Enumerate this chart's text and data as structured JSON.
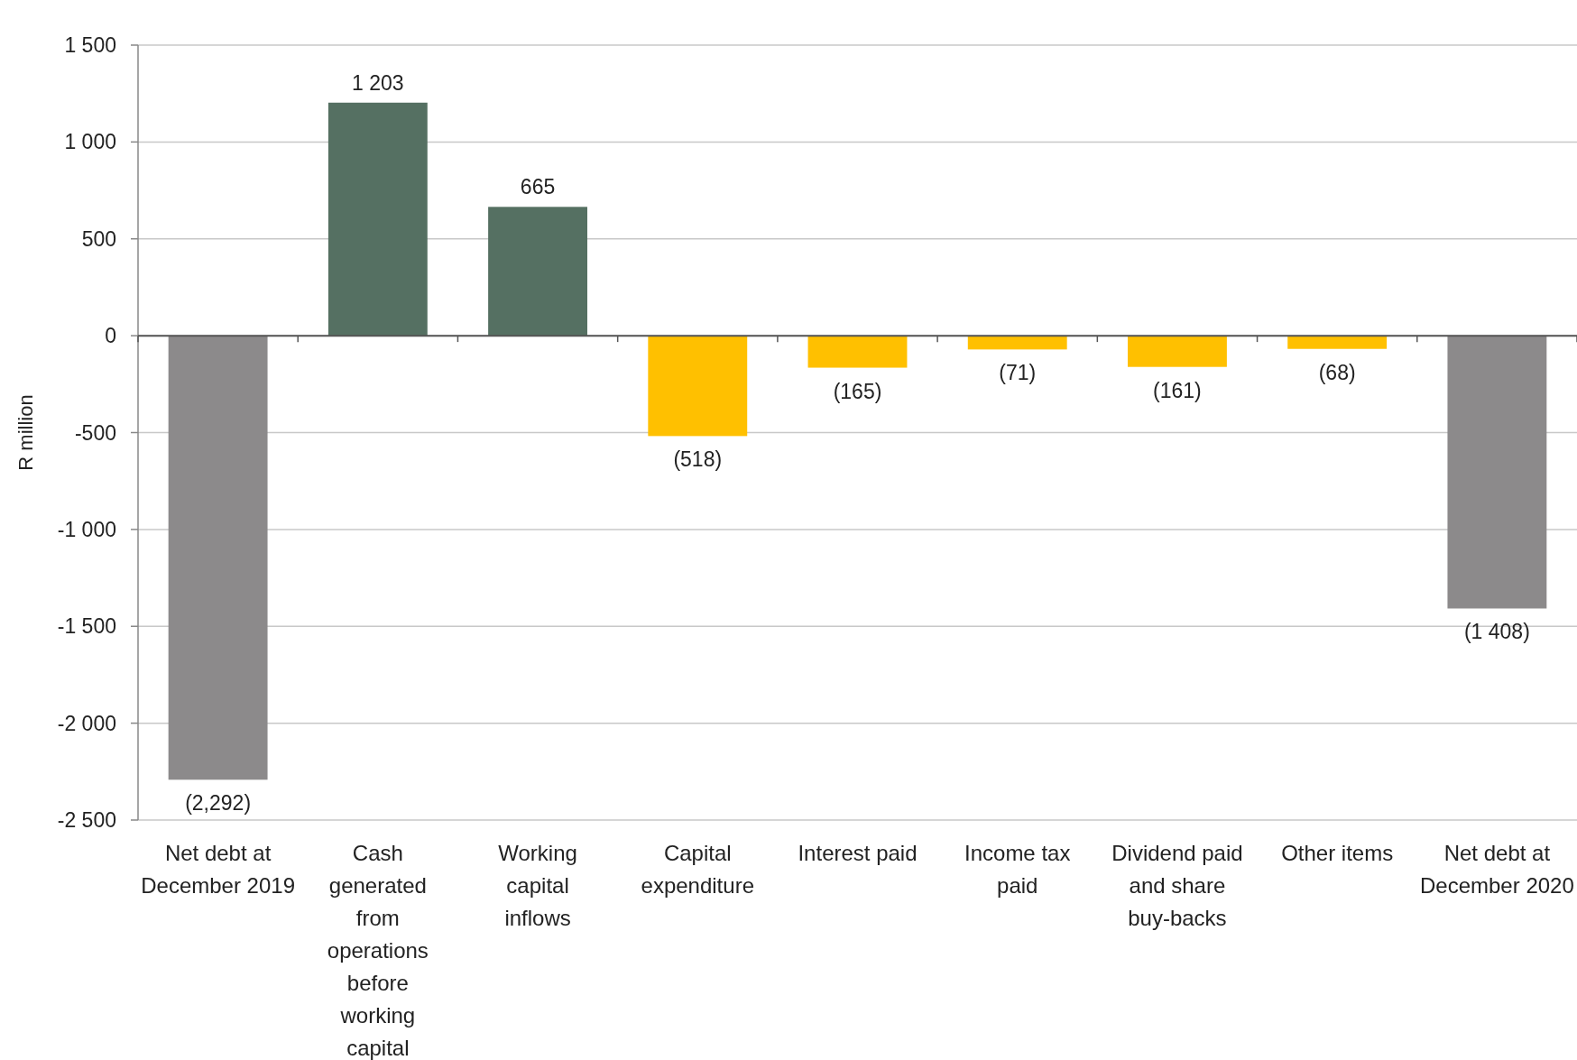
{
  "chart_data": {
    "type": "bar",
    "ylabel": "R million",
    "categories": [
      "Net debt at December 2019",
      "Cash generated from operations before working capital",
      "Working capital inflows",
      "Capital expenditure",
      "Interest paid",
      "Income tax paid",
      "Dividend paid and share buy-backs",
      "Other items",
      "Net debt at December 2020"
    ],
    "values": [
      -2292,
      1203,
      665,
      -518,
      -165,
      -71,
      -161,
      -68,
      -1408
    ],
    "colors": [
      "#8c8a8b",
      "#557062",
      "#557062",
      "#ffc000",
      "#ffc000",
      "#ffc000",
      "#ffc000",
      "#ffc000",
      "#8c8a8b"
    ],
    "value_labels": [
      "(2,292)",
      "1 203",
      "665",
      "(518)",
      "(165)",
      "(71)",
      "(161)",
      "(68)",
      "(1 408)"
    ],
    "ylim": [
      -2500,
      1500
    ],
    "yticks": [
      {
        "value": -2500,
        "label": "-2 500"
      },
      {
        "value": -2000,
        "label": "-2 000"
      },
      {
        "value": -1500,
        "label": "-1 500"
      },
      {
        "value": -1000,
        "label": "-1 000"
      },
      -500,
      0,
      500,
      {
        "value": 1000,
        "label": "1 000"
      },
      {
        "value": 1500,
        "label": "1 500"
      }
    ],
    "grid": "y"
  }
}
